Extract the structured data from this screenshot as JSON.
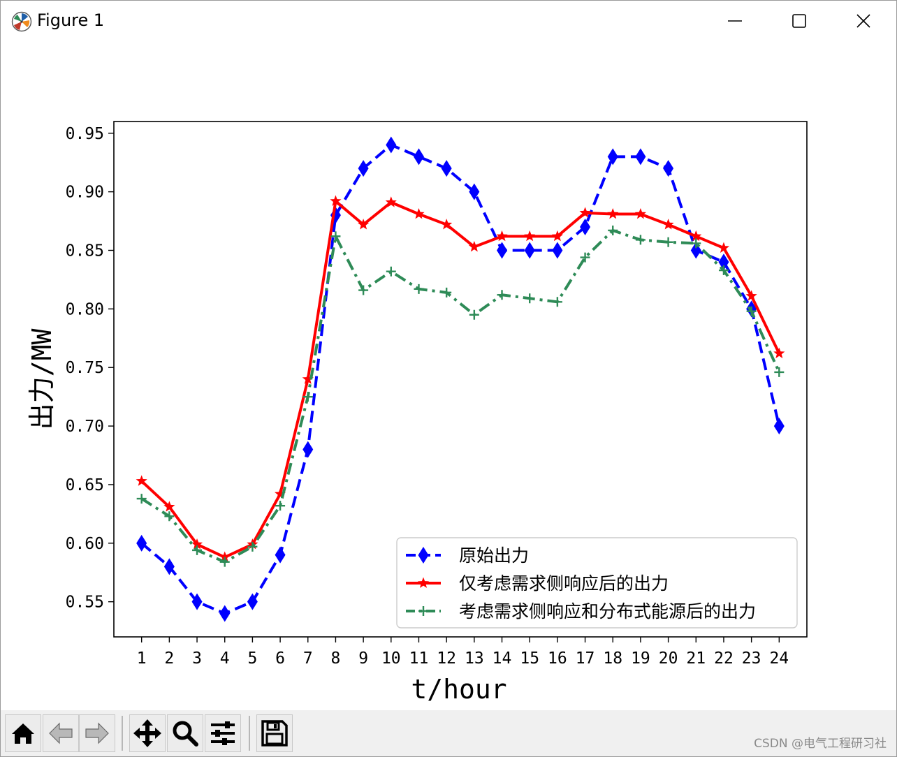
{
  "window": {
    "title": "Figure 1",
    "icons": {
      "app": "matplotlib-logo-icon",
      "minimize": "minimize-icon",
      "maximize": "maximize-icon",
      "close": "close-icon"
    }
  },
  "toolbar": {
    "buttons": [
      {
        "name": "home-button",
        "icon": "home-icon"
      },
      {
        "name": "back-button",
        "icon": "arrow-left-icon"
      },
      {
        "name": "forward-button",
        "icon": "arrow-right-icon"
      },
      {
        "name": "pan-button",
        "icon": "move-arrows-icon"
      },
      {
        "name": "zoom-button",
        "icon": "magnifier-icon"
      },
      {
        "name": "configure-subplots-button",
        "icon": "sliders-icon"
      },
      {
        "name": "save-button",
        "icon": "floppy-disk-icon"
      }
    ]
  },
  "watermark": "CSDN @电气工程研习社",
  "chart_data": {
    "type": "line",
    "title": "",
    "xlabel": "t/hour",
    "ylabel": "出力/MW",
    "x": [
      1,
      2,
      3,
      4,
      5,
      6,
      7,
      8,
      9,
      10,
      11,
      12,
      13,
      14,
      15,
      16,
      17,
      18,
      19,
      20,
      21,
      22,
      23,
      24
    ],
    "xlim": [
      0,
      25
    ],
    "ylim": [
      0.52,
      0.96
    ],
    "yticks": [
      0.55,
      0.6,
      0.65,
      0.7,
      0.75,
      0.8,
      0.85,
      0.9,
      0.95
    ],
    "ytick_labels": [
      "0.55",
      "0.60",
      "0.65",
      "0.70",
      "0.75",
      "0.80",
      "0.85",
      "0.90",
      "0.95"
    ],
    "grid": false,
    "legend_position": "lower-right",
    "series": [
      {
        "name": "原始出力",
        "color": "#0000ff",
        "linestyle": "dashed",
        "marker": "diamond",
        "values": [
          0.6,
          0.58,
          0.55,
          0.54,
          0.55,
          0.59,
          0.68,
          0.88,
          0.92,
          0.94,
          0.93,
          0.92,
          0.9,
          0.85,
          0.85,
          0.85,
          0.87,
          0.93,
          0.93,
          0.92,
          0.85,
          0.84,
          0.8,
          0.7
        ]
      },
      {
        "name": "仅考虑需求侧响应后的出力",
        "color": "#ff0000",
        "linestyle": "solid",
        "marker": "star",
        "values": [
          0.653,
          0.631,
          0.599,
          0.588,
          0.599,
          0.642,
          0.74,
          0.892,
          0.872,
          0.891,
          0.881,
          0.872,
          0.853,
          0.862,
          0.862,
          0.862,
          0.882,
          0.881,
          0.881,
          0.872,
          0.862,
          0.852,
          0.811,
          0.762
        ]
      },
      {
        "name": "考虑需求侧响应和分布式能源后的出力",
        "color": "#2e8b57",
        "linestyle": "dashdot",
        "marker": "plus",
        "values": [
          0.638,
          0.623,
          0.594,
          0.584,
          0.597,
          0.632,
          0.725,
          0.862,
          0.816,
          0.832,
          0.817,
          0.814,
          0.795,
          0.812,
          0.809,
          0.806,
          0.844,
          0.867,
          0.859,
          0.857,
          0.856,
          0.833,
          0.798,
          0.746
        ]
      }
    ]
  }
}
